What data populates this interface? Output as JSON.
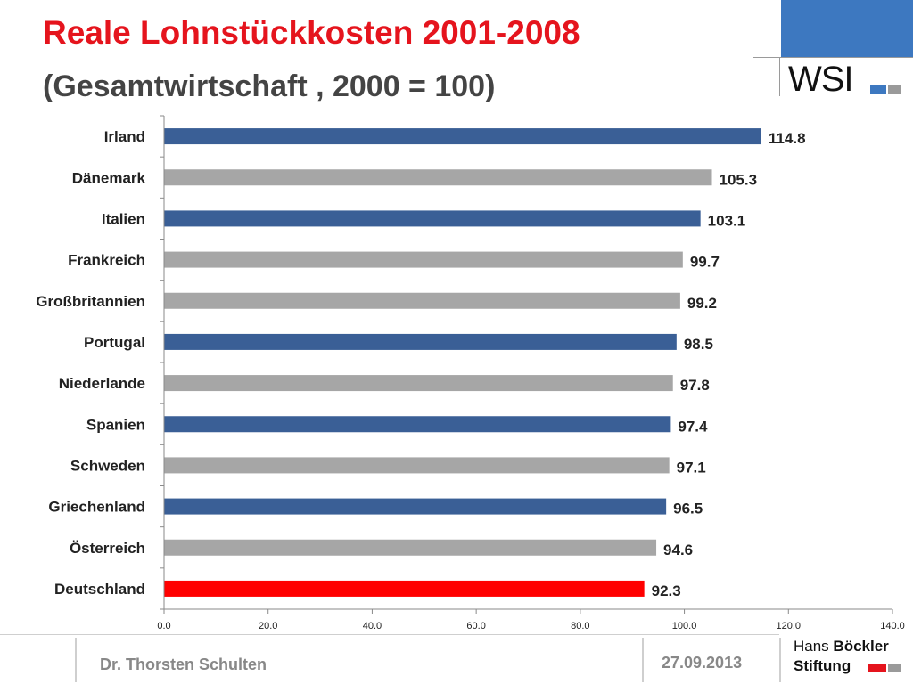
{
  "slide": {
    "title": "Reale Lohnstückkosten 2001-2008",
    "subtitle": "(Gesamtwirtschaft , 2000 = 100)"
  },
  "logos": {
    "wsi": "WSI",
    "hbs_line1_a": "Hans",
    "hbs_line1_b": "Böckler",
    "hbs_line2": "Stiftung"
  },
  "footer": {
    "author": "Dr. Thorsten Schulten",
    "date": "27.09.2013"
  },
  "colors": {
    "title": "#e5141d",
    "subtitle": "#444444",
    "blue_bar": "#3a5f96",
    "gray_bar": "#a6a6a6",
    "red_bar": "#ff0000",
    "brand_blue": "#3d78c0",
    "brand_gray": "#9a9a9a"
  },
  "chart_data": {
    "type": "bar",
    "orientation": "horizontal",
    "categories": [
      "Irland",
      "Dänemark",
      "Italien",
      "Frankreich",
      "Großbritannien",
      "Portugal",
      "Niederlande",
      "Spanien",
      "Schweden",
      "Griechenland",
      "Österreich",
      "Deutschland"
    ],
    "values": [
      114.8,
      105.3,
      103.1,
      99.7,
      99.2,
      98.5,
      97.8,
      97.4,
      97.1,
      96.5,
      94.6,
      92.3
    ],
    "value_labels": [
      "114.8",
      "105.3",
      "103.1",
      "99.7",
      "99.2",
      "98.5",
      "97.8",
      "97.4",
      "97.1",
      "96.5",
      "94.6",
      "92.3"
    ],
    "bar_colors": [
      "blue",
      "gray",
      "blue",
      "gray",
      "gray",
      "blue",
      "gray",
      "blue",
      "gray",
      "blue",
      "gray",
      "red"
    ],
    "xlim": [
      0,
      140
    ],
    "xticks": [
      "0.0",
      "20.0",
      "40.0",
      "60.0",
      "80.0",
      "100.0",
      "120.0",
      "140.0"
    ],
    "title": "",
    "xlabel": "",
    "ylabel": "",
    "grid": false,
    "legend": false
  }
}
